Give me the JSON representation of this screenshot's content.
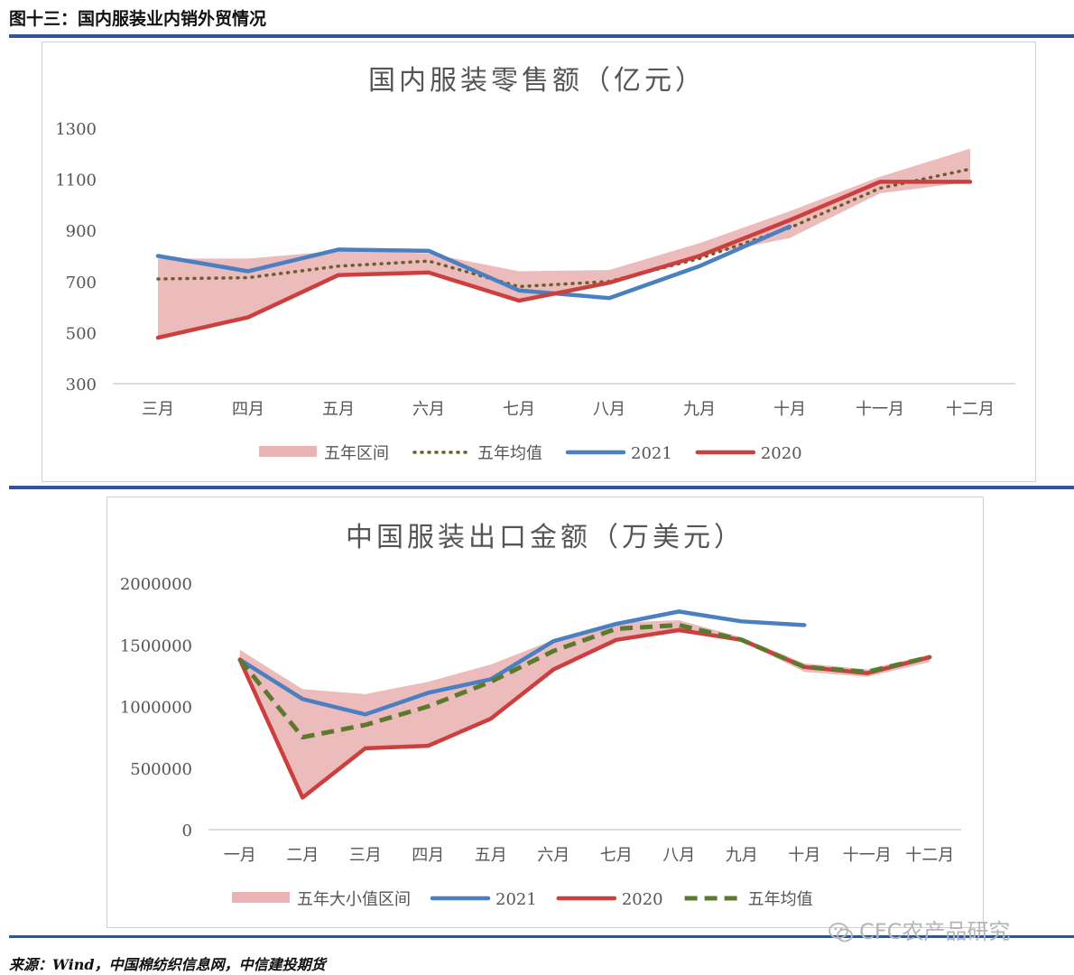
{
  "figure_title": "图十三：国内服装业内销外贸情况",
  "source": "来源：Wind，中国棉纺织信息网，中信建投期货",
  "watermark": "CFC农产品研究",
  "colors": {
    "band": "#eab4b4",
    "avg_dot": "#6b5e2a",
    "avg_dash": "#5c7a2e",
    "s2021": "#4a7fc1",
    "s2020": "#cc3f3f",
    "rule": "#2f5597"
  },
  "chart_data": [
    {
      "type": "line",
      "title": "国内服装零售额（亿元）",
      "categories": [
        "三月",
        "四月",
        "五月",
        "六月",
        "七月",
        "八月",
        "九月",
        "十月",
        "十一月",
        "十二月"
      ],
      "ylim": [
        300,
        1300
      ],
      "yticks": [
        300,
        500,
        700,
        900,
        1100,
        1300
      ],
      "band": {
        "name": "五年区间",
        "low": [
          480,
          560,
          725,
          735,
          620,
          690,
          800,
          870,
          1045,
          1090
        ],
        "high": [
          790,
          790,
          820,
          810,
          740,
          745,
          850,
          975,
          1110,
          1220
        ]
      },
      "series": [
        {
          "name": "五年均值",
          "style": "dotted",
          "values": [
            710,
            715,
            760,
            780,
            680,
            700,
            790,
            910,
            1065,
            1140
          ]
        },
        {
          "name": "2021",
          "style": "solid-blue",
          "values": [
            800,
            740,
            825,
            820,
            665,
            635,
            760,
            915,
            null,
            null
          ]
        },
        {
          "name": "2020",
          "style": "solid-red",
          "values": [
            480,
            560,
            725,
            735,
            625,
            695,
            800,
            940,
            1090,
            1090
          ]
        }
      ],
      "legend": [
        "五年区间",
        "五年均值",
        "2021",
        "2020"
      ],
      "legend_position": "bottom"
    },
    {
      "type": "line",
      "title": "中国服装出口金额（万美元）",
      "categories": [
        "一月",
        "二月",
        "三月",
        "四月",
        "五月",
        "六月",
        "七月",
        "八月",
        "九月",
        "十月",
        "十一月",
        "十二月"
      ],
      "ylim": [
        0,
        2000000
      ],
      "yticks": [
        0,
        500000,
        1000000,
        1500000,
        2000000
      ],
      "band": {
        "name": "五年大小值区间",
        "low": [
          1340,
          260,
          660,
          680,
          900,
          1300,
          1530,
          1600,
          1530,
          1280,
          1240,
          1360
        ],
        "high": [
          1460,
          1140,
          1100,
          1200,
          1340,
          1540,
          1680,
          1700,
          1560,
          1350,
          1300,
          1420
        ]
      },
      "series": [
        {
          "name": "2021",
          "style": "solid-blue",
          "values": [
            1380,
            1060,
            935,
            1110,
            1220,
            1530,
            1670,
            1770,
            1690,
            1660,
            null,
            null
          ]
        },
        {
          "name": "2020",
          "style": "solid-red",
          "values": [
            1380,
            260,
            660,
            680,
            900,
            1300,
            1540,
            1620,
            1540,
            1320,
            1270,
            1400
          ]
        },
        {
          "name": "五年均值",
          "style": "dashed",
          "values": [
            1380,
            750,
            850,
            1000,
            1200,
            1450,
            1630,
            1660,
            1540,
            1320,
            1280,
            1400
          ]
        }
      ],
      "value_scale_note": "",
      "legend": [
        "五年大小值区间",
        "2021",
        "2020",
        "五年均值"
      ],
      "legend_position": "bottom"
    }
  ]
}
